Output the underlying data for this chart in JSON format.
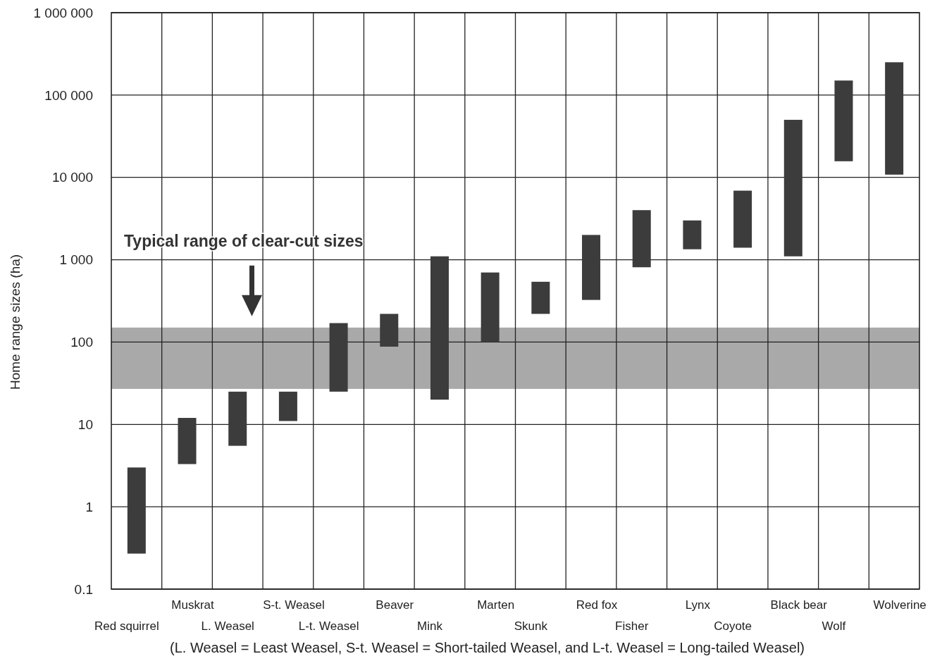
{
  "chart_data": {
    "type": "bar",
    "ylabel": "Home range sizes (ha)",
    "categories": [
      "Red squirrel",
      "Muskrat",
      "L. Weasel",
      "S-t. Weasel",
      "L-t. Weasel",
      "Beaver",
      "Mink",
      "Marten",
      "Skunk",
      "Red fox",
      "Fisher",
      "Lynx",
      "Coyote",
      "Black bear",
      "Wolf",
      "Wolverine"
    ],
    "base": [
      0.27,
      3.3,
      5.5,
      11,
      25,
      88,
      20,
      100,
      220,
      325,
      810,
      1340,
      1400,
      1100,
      15700,
      10800
    ],
    "values": [
      2.73,
      8.7,
      19.5,
      14,
      145,
      132,
      1080,
      600,
      320,
      1675,
      3190,
      1660,
      5500,
      48900,
      134300,
      239200
    ],
    "color": "#3c3c3c",
    "log": true,
    "ylim": [
      0.1,
      1000000
    ],
    "yticks": [
      0.1,
      1,
      10,
      100,
      {
        "value": 1000,
        "label": "1 000"
      },
      {
        "value": 10000,
        "label": "10 000"
      },
      {
        "value": 100000,
        "label": "100 000"
      },
      {
        "value": 1000000,
        "label": "1 000 000"
      }
    ],
    "grid": true,
    "bands": [
      {
        "axis": "y",
        "from": 27,
        "to": 150,
        "color": "#a9a9a9"
      }
    ],
    "annotations": [
      "Typical range of clear-cut sizes",
      "(L. Weasel = Least Weasel, S-t. Weasel = Short-tailed Weasel, and L-t. Weasel = Long-tailed Weasel)"
    ]
  }
}
